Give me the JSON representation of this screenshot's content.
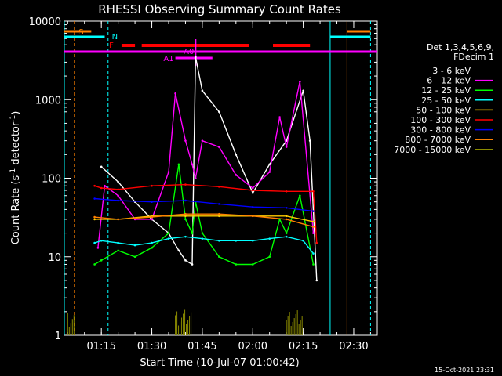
{
  "chart_data": {
    "type": "line",
    "title": "RHESSI Observing Summary Count Rates",
    "xlabel": "Start Time (10-Jul-07 01:00:42)",
    "ylabel_parts": [
      "Count Rate (s",
      "-1",
      " detector",
      "-1",
      ")"
    ],
    "ylabel": "Count Rate (s-1 detector-1)",
    "yscale": "log",
    "ylim": [
      1,
      10000
    ],
    "xlim": [
      "01:04",
      "02:37"
    ],
    "x_ticks": [
      "01:15",
      "01:30",
      "01:45",
      "02:00",
      "02:15",
      "02:30"
    ],
    "y_ticks": [
      "1",
      "10",
      "100",
      "1000",
      "10000"
    ],
    "date_stamp": "15-Oct-2021 23:31",
    "legend_title": [
      "Det 1,3,4,5,6,9,",
      "FDecim 1"
    ],
    "flags": [
      {
        "label": "S",
        "color": "#ff8000"
      },
      {
        "label": "N",
        "color": "#00ffff"
      },
      {
        "label": "F",
        "color": "#ff0000"
      },
      {
        "label": "A0",
        "color": "#ff00ff"
      },
      {
        "label": "A1",
        "color": "#ff00ff"
      }
    ],
    "series": [
      {
        "name": "3 - 6 keV",
        "color": "#000000",
        "x": [
          "01:15",
          "01:20",
          "01:25",
          "01:30",
          "01:35",
          "01:38",
          "01:40",
          "01:42",
          "01:43",
          "01:45",
          "01:50",
          "01:55",
          "02:00",
          "02:05",
          "02:10",
          "02:15",
          "02:17",
          "02:19"
        ],
        "values": [
          140,
          90,
          50,
          30,
          20,
          12,
          9,
          8,
          3500,
          1300,
          700,
          200,
          65,
          150,
          300,
          1300,
          300,
          5
        ]
      },
      {
        "name": "6 - 12 keV",
        "color": "#ff00ff",
        "x": [
          "01:14",
          "01:16",
          "01:20",
          "01:25",
          "01:30",
          "01:35",
          "01:37",
          "01:40",
          "01:42",
          "01:43",
          "01:45",
          "01:50",
          "01:55",
          "02:00",
          "02:05",
          "02:08",
          "02:10",
          "02:14",
          "02:18"
        ],
        "values": [
          13,
          80,
          60,
          30,
          30,
          120,
          1200,
          300,
          150,
          100,
          300,
          250,
          110,
          75,
          120,
          600,
          250,
          1700,
          20
        ]
      },
      {
        "name": "12 - 25 keV",
        "color": "#00ff00",
        "x": [
          "01:13",
          "01:15",
          "01:20",
          "01:25",
          "01:30",
          "01:35",
          "01:38",
          "01:40",
          "01:42",
          "01:43",
          "01:45",
          "01:50",
          "01:55",
          "02:00",
          "02:05",
          "02:08",
          "02:10",
          "02:14",
          "02:18"
        ],
        "values": [
          8,
          9,
          12,
          10,
          13,
          20,
          150,
          30,
          20,
          50,
          20,
          10,
          8,
          8,
          10,
          30,
          20,
          60,
          8
        ]
      },
      {
        "name": "25 - 50 keV",
        "color": "#00ffff",
        "x": [
          "01:13",
          "01:15",
          "01:20",
          "01:25",
          "01:30",
          "01:35",
          "01:40",
          "01:45",
          "01:50",
          "01:55",
          "02:00",
          "02:05",
          "02:10",
          "02:15",
          "02:18"
        ],
        "values": [
          15,
          16,
          15,
          14,
          15,
          17,
          18,
          17,
          16,
          16,
          16,
          17,
          18,
          16,
          11
        ]
      },
      {
        "name": "50 - 100 keV",
        "color": "#ffcc00",
        "x": [
          "01:13",
          "01:20",
          "01:30",
          "01:40",
          "01:50",
          "02:00",
          "02:10",
          "02:18"
        ],
        "values": [
          30,
          30,
          33,
          33,
          33,
          33,
          33,
          28
        ]
      },
      {
        "name": "100 - 300 keV",
        "color": "#ff0000",
        "x": [
          "01:13",
          "01:15",
          "01:20",
          "01:30",
          "01:40",
          "01:50",
          "02:00",
          "02:10",
          "02:18",
          "02:19"
        ],
        "values": [
          80,
          75,
          72,
          80,
          83,
          78,
          70,
          68,
          68,
          15
        ]
      },
      {
        "name": "300 - 800 keV",
        "color": "#0000ff",
        "x": [
          "01:13",
          "01:20",
          "01:30",
          "01:40",
          "01:50",
          "02:00",
          "02:10",
          "02:18"
        ],
        "values": [
          55,
          52,
          50,
          52,
          47,
          43,
          42,
          38
        ]
      },
      {
        "name": "800 - 7000 keV",
        "color": "#ff8000",
        "x": [
          "01:13",
          "01:20",
          "01:30",
          "01:40",
          "01:50",
          "02:00",
          "02:10",
          "02:18"
        ],
        "values": [
          32,
          30,
          32,
          35,
          35,
          33,
          30,
          24
        ]
      },
      {
        "name": "7000 - 15000 keV",
        "color": "#8b8b00",
        "x": [
          "01:05",
          "01:07",
          "01:37",
          "01:42",
          "02:10",
          "02:15"
        ],
        "values": [
          2,
          2,
          1.5,
          1.5,
          1.5,
          1.5
        ]
      }
    ]
  }
}
